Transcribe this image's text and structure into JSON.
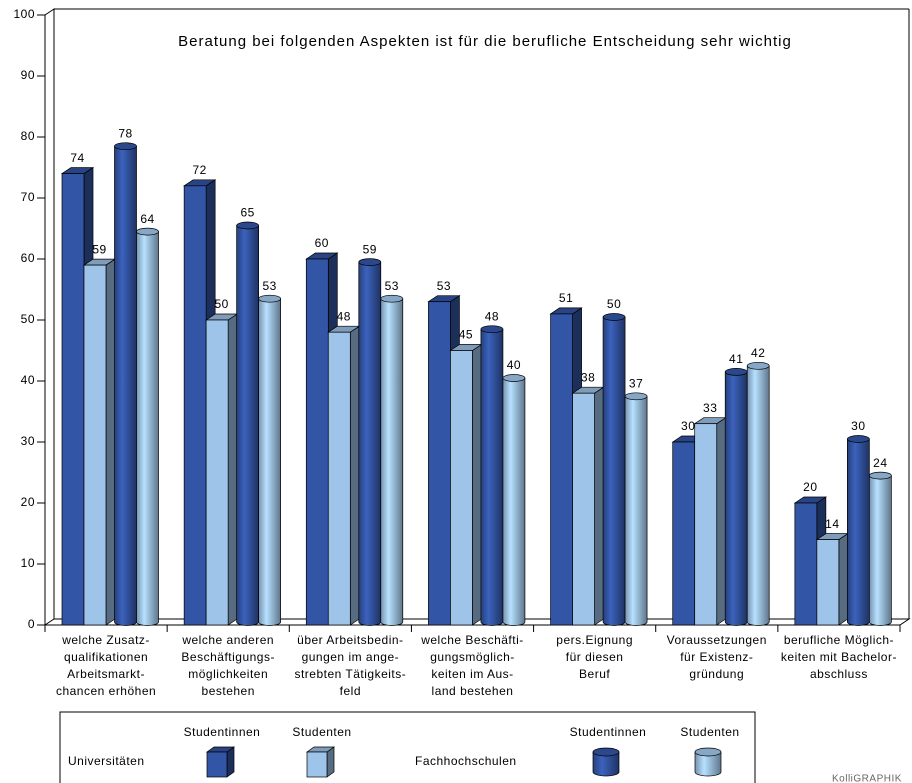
{
  "chart_data": {
    "type": "bar3d",
    "title": "Beratung bei folgenden Aspekten ist für die berufliche Entscheidung sehr wichtig",
    "categories": [
      [
        "welche Zusatz-",
        "qualifikationen",
        "Arbeitsmarkt-",
        "chancen erhöhen"
      ],
      [
        "welche anderen",
        "Beschäftigungs-",
        "möglichkeiten",
        "bestehen"
      ],
      [
        "über Arbeitsbedin-",
        "gungen im ange-",
        "strebten Tätigkeits-",
        "feld"
      ],
      [
        "welche Beschäfti-",
        "gungsmöglich-",
        "keiten im Aus-",
        "land bestehen"
      ],
      [
        "pers.Eignung",
        "für diesen",
        "Beruf"
      ],
      [
        "Voraussetzungen",
        "für Existenz-",
        "gründung"
      ],
      [
        "berufliche Möglich-",
        "keiten mit Bachelor-",
        "abschluss"
      ]
    ],
    "series": [
      {
        "name": "Studentinnen",
        "group": "Universitäten",
        "shape": "box",
        "color": "#3355a5",
        "values": [
          74,
          72,
          60,
          53,
          51,
          30,
          20
        ]
      },
      {
        "name": "Studenten",
        "group": "Universitäten",
        "shape": "box",
        "color": "#9fc4ea",
        "values": [
          59,
          50,
          48,
          45,
          38,
          33,
          14
        ]
      },
      {
        "name": "Studentinnen",
        "group": "Fachhochschulen",
        "shape": "cylinder",
        "color": "#3355a5",
        "values": [
          78,
          65,
          59,
          48,
          50,
          41,
          30
        ]
      },
      {
        "name": "Studenten",
        "group": "Fachhochschulen",
        "shape": "cylinder",
        "color": "#9fc4ea",
        "values": [
          64,
          53,
          53,
          40,
          37,
          42,
          24
        ]
      }
    ],
    "ylim": [
      0,
      100
    ],
    "yticks": [
      0,
      10,
      20,
      30,
      40,
      50,
      60,
      70,
      80,
      90,
      100
    ],
    "source": "KolliGRAPHIK"
  }
}
